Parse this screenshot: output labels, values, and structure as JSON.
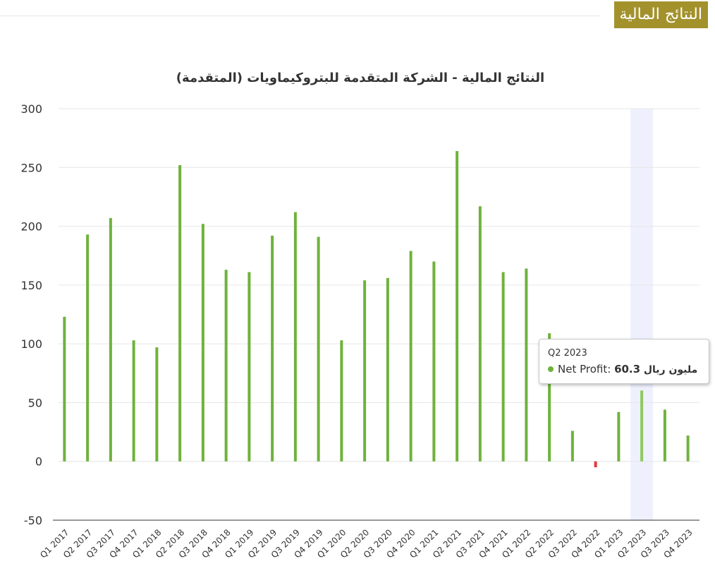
{
  "badge": {
    "text": "النتائج المالية"
  },
  "chart_data": {
    "type": "bar",
    "title": "النتائج المالية - الشركة المتقدمة للبتروكيماويات (المتقدمة)",
    "xlabel": "",
    "ylabel": "",
    "ylim": [
      -50,
      300
    ],
    "yticks": [
      300,
      250,
      200,
      150,
      100,
      50,
      0,
      -50
    ],
    "grid": true,
    "categories": [
      "Q1 2017",
      "Q2 2017",
      "Q3 2017",
      "Q4 2017",
      "Q1 2018",
      "Q2 2018",
      "Q3 2018",
      "Q4 2018",
      "Q1 2019",
      "Q2 2019",
      "Q3 2019",
      "Q4 2019",
      "Q1 2020",
      "Q2 2020",
      "Q3 2020",
      "Q4 2020",
      "Q1 2021",
      "Q2 2021",
      "Q3 2021",
      "Q4 2021",
      "Q1 2022",
      "Q2 2022",
      "Q3 2022",
      "Q4 2022",
      "Q1 2023",
      "Q2 2023",
      "Q3 2023",
      "Q4 2023"
    ],
    "series": [
      {
        "name": "Net Profit",
        "values": [
          123,
          193,
          207,
          103,
          97,
          252,
          202,
          163,
          161,
          192,
          212,
          191,
          103,
          154,
          156,
          179,
          170,
          264,
          217,
          161,
          164,
          109,
          26,
          -5,
          42,
          60.3,
          44,
          22
        ]
      }
    ],
    "colors": {
      "positive": "#6fb23c",
      "negative": "#e0393e",
      "highlight": "#eef1fd"
    },
    "highlighted_category": "Q2 2023",
    "tooltip": {
      "category": "Q2 2023",
      "series": "Net Profit",
      "value": "60.3",
      "unit": "مليون ريال"
    }
  }
}
